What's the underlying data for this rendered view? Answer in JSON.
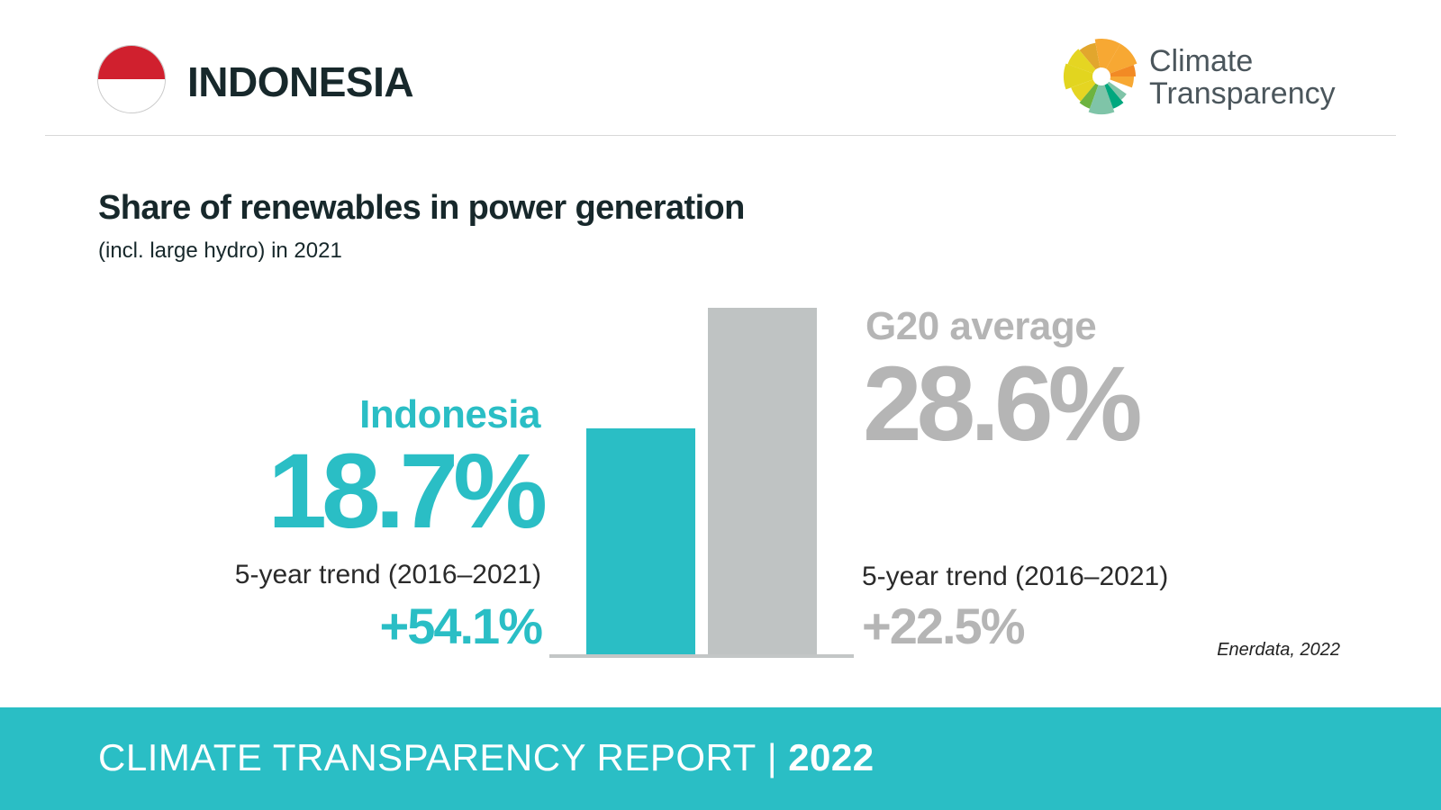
{
  "header": {
    "country": "INDONESIA",
    "logo_line1": "Climate",
    "logo_line2": "Transparency"
  },
  "title": "Share of renewables in power generation",
  "subtitle": "(incl. large hydro) in 2021",
  "chart_data": {
    "type": "bar",
    "title": "Share of renewables in power generation",
    "subtitle": "(incl. large hydro) in 2021",
    "categories": [
      "Indonesia",
      "G20 average"
    ],
    "values": [
      18.7,
      28.6
    ],
    "value_labels": [
      "18.7%",
      "28.6%"
    ],
    "unit": "%",
    "trend_label": "5-year trend (2016–2021)",
    "trends": [
      54.1,
      22.5
    ],
    "trend_labels": [
      "+54.1%",
      "+22.5%"
    ],
    "colors": [
      "#2abec5",
      "#bfc3c3"
    ],
    "label_colors": [
      "#2abec5",
      "#b5b5b5"
    ],
    "ylim": [
      0,
      28.6
    ],
    "grid": false,
    "source": "Enerdata, 2022"
  },
  "footer": {
    "title": "CLIMATE TRANSPARENCY REPORT",
    "separator": "|",
    "year": "2022"
  }
}
